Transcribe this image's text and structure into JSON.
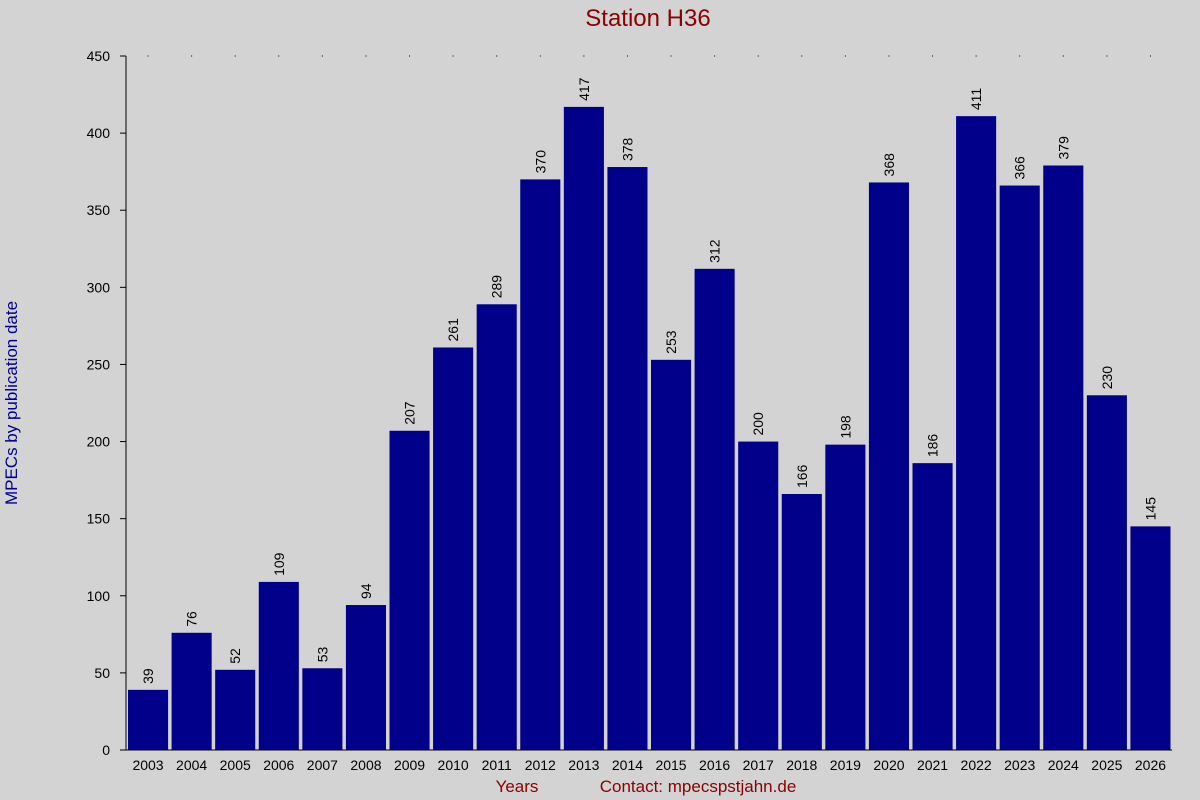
{
  "chart_data": {
    "type": "bar",
    "title": "Station H36",
    "xlabel": "Years",
    "ylabel": "MPECs by publication date",
    "contact": "Contact: mpecspstjahn.de",
    "categories": [
      "2003",
      "2004",
      "2005",
      "2006",
      "2007",
      "2008",
      "2009",
      "2010",
      "2011",
      "2012",
      "2013",
      "2014",
      "2015",
      "2016",
      "2017",
      "2018",
      "2019",
      "2020",
      "2021",
      "2022",
      "2023",
      "2024",
      "2025",
      "2026"
    ],
    "values": [
      39,
      76,
      52,
      109,
      53,
      94,
      207,
      261,
      289,
      370,
      417,
      378,
      253,
      312,
      200,
      166,
      198,
      368,
      186,
      411,
      366,
      379,
      230,
      145
    ],
    "ylim": [
      0,
      450
    ],
    "yticks": [
      0,
      50,
      100,
      150,
      200,
      250,
      300,
      350,
      400,
      450
    ],
    "grid": false,
    "legend": "none",
    "colors": {
      "bar": "#00008b",
      "title": "#8b0000",
      "ylabel": "#00008b",
      "footer": "#8b0000",
      "background": "#d3d3d3"
    }
  }
}
